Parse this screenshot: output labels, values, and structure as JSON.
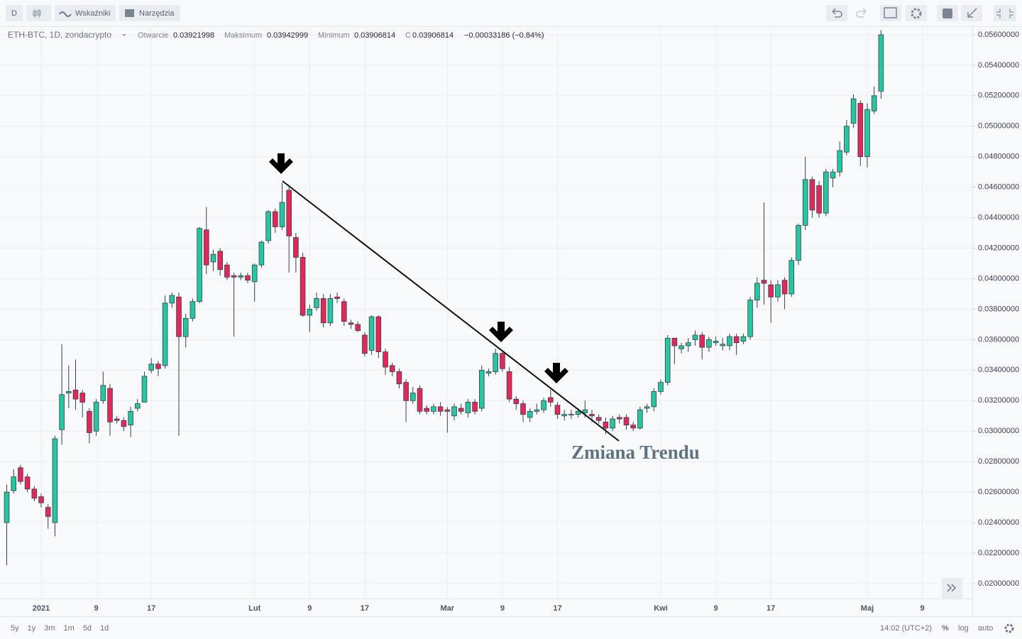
{
  "toolbar": {
    "interval": "D",
    "indicators": "Wskaźniki",
    "tools": "Narzędzia"
  },
  "legend": {
    "symbol": "ETH-BTC, 1D, zondacrypto",
    "items": [
      {
        "label": "Otwarcie",
        "value": "0.03921998"
      },
      {
        "label": "Maksimum",
        "value": "0.03942999"
      },
      {
        "label": "Minimum",
        "value": "0.03906814"
      },
      {
        "label": "C",
        "value": "0.03906814"
      }
    ],
    "change": "−0.00033186 (−0.84%)"
  },
  "bottom": {
    "ranges": [
      "5y",
      "1y",
      "3m",
      "1m",
      "5d",
      "1d"
    ],
    "time": "14:02 (UTC+2)",
    "percent": "%",
    "log": "log",
    "auto": "auto"
  },
  "chart_data": {
    "type": "candlestick",
    "annotation": "Zmiana Trendu",
    "up_color": "#26c6a2",
    "down_color": "#e0285a",
    "wick_color": "#3a3e4a",
    "grid": true,
    "xlim": [
      -5.98,
      135.26
    ],
    "ylim": [
      0.01902,
      0.05651
    ],
    "xticks": [
      {
        "value": 0,
        "label": "2021"
      },
      {
        "value": 8,
        "label": "9"
      },
      {
        "value": 16,
        "label": "17"
      },
      {
        "value": 31,
        "label": "Lut"
      },
      {
        "value": 39,
        "label": "9"
      },
      {
        "value": 47,
        "label": "17"
      },
      {
        "value": 59,
        "label": "Mar"
      },
      {
        "value": 67,
        "label": "9"
      },
      {
        "value": 75,
        "label": "17"
      },
      {
        "value": 90,
        "label": "Kwi"
      },
      {
        "value": 98,
        "label": "9"
      },
      {
        "value": 106,
        "label": "17"
      },
      {
        "value": 120,
        "label": "Maj"
      },
      {
        "value": 128,
        "label": "9"
      }
    ],
    "yticks": [
      {
        "value": 0.02,
        "label": "0.02000000"
      },
      {
        "value": 0.022,
        "label": "0.02200000"
      },
      {
        "value": 0.024,
        "label": "0.02400000"
      },
      {
        "value": 0.026,
        "label": "0.02600000"
      },
      {
        "value": 0.028,
        "label": "0.02800000"
      },
      {
        "value": 0.03,
        "label": "0.03000000"
      },
      {
        "value": 0.032,
        "label": "0.03200000"
      },
      {
        "value": 0.034,
        "label": "0.03400000"
      },
      {
        "value": 0.036,
        "label": "0.03600000"
      },
      {
        "value": 0.038,
        "label": "0.03800000"
      },
      {
        "value": 0.04,
        "label": "0.04000000"
      },
      {
        "value": 0.042,
        "label": "0.04200000"
      },
      {
        "value": 0.044,
        "label": "0.04400000"
      },
      {
        "value": 0.046,
        "label": "0.04600000"
      },
      {
        "value": 0.048,
        "label": "0.04800000"
      },
      {
        "value": 0.05,
        "label": "0.05000000"
      },
      {
        "value": 0.052,
        "label": "0.05200000"
      },
      {
        "value": 0.054,
        "label": "0.05400000"
      },
      {
        "value": 0.056,
        "label": "0.05600000"
      }
    ],
    "x": [
      -5,
      -4,
      -3,
      -2,
      -1,
      0,
      1,
      2,
      3,
      4,
      5,
      6,
      7,
      8,
      9,
      10,
      11,
      12,
      13,
      14,
      15,
      16,
      17,
      18,
      19,
      20,
      21,
      22,
      23,
      24,
      25,
      26,
      27,
      28,
      29,
      30,
      31,
      32,
      33,
      34,
      35,
      36,
      37,
      38,
      39,
      40,
      41,
      42,
      43,
      44,
      45,
      46,
      47,
      48,
      49,
      50,
      51,
      52,
      53,
      54,
      55,
      56,
      57,
      58,
      59,
      60,
      61,
      62,
      63,
      64,
      65,
      66,
      67,
      68,
      69,
      70,
      71,
      72,
      73,
      74,
      75,
      76,
      77,
      78,
      79,
      80,
      81,
      82,
      83,
      84,
      85,
      86,
      87,
      88,
      89,
      90,
      91,
      92,
      93,
      94,
      95,
      96,
      97,
      98,
      99,
      100,
      101,
      102,
      103,
      104,
      105,
      106,
      107,
      108,
      109,
      110,
      111,
      112,
      113,
      114,
      115,
      116,
      117,
      118,
      119,
      120,
      121,
      122
    ],
    "open": [
      0.024,
      0.0261,
      0.0276,
      0.027,
      0.0262,
      0.0257,
      0.025,
      0.024,
      0.0301,
      0.0325,
      0.0327,
      0.0325,
      0.0313,
      0.03,
      0.032,
      0.0328,
      0.0308,
      0.0307,
      0.0304,
      0.0315,
      0.0319,
      0.034,
      0.0344,
      0.0343,
      0.0384,
      0.0388,
      0.0362,
      0.0374,
      0.0385,
      0.0432,
      0.0411,
      0.0418,
      0.0409,
      0.0402,
      0.0401,
      0.0402,
      0.0398,
      0.0409,
      0.0425,
      0.0444,
      0.0434,
      0.0458,
      0.0427,
      0.0414,
      0.0376,
      0.0381,
      0.0387,
      0.0371,
      0.0388,
      0.0385,
      0.0371,
      0.037,
      0.0363,
      0.0353,
      0.0375,
      0.0352,
      0.0343,
      0.0339,
      0.0332,
      0.032,
      0.0328,
      0.0315,
      0.0313,
      0.0316,
      0.0314,
      0.031,
      0.0315,
      0.0312,
      0.0319,
      0.0315,
      0.0338,
      0.0339,
      0.0351,
      0.0339,
      0.0321,
      0.0318,
      0.0309,
      0.0313,
      0.0314,
      0.0322,
      0.0317,
      0.031,
      0.0311,
      0.0311,
      0.0312,
      0.0311,
      0.0309,
      0.0306,
      0.0302,
      0.0309,
      0.0309,
      0.0304,
      0.0302,
      0.0315,
      0.0316,
      0.0326,
      0.0332,
      0.0361,
      0.0354,
      0.0356,
      0.036,
      0.0363,
      0.0355,
      0.0358,
      0.0356,
      0.0356,
      0.0362,
      0.0359,
      0.0362,
      0.0386,
      0.0399,
      0.0396,
      0.0388,
      0.0399,
      0.039,
      0.0412,
      0.0435,
      0.0465,
      0.0461,
      0.0443,
      0.0466,
      0.047,
      0.0483,
      0.0502,
      0.0515,
      0.048,
      0.051,
      0.0523
    ],
    "high": [
      0.0265,
      0.0275,
      0.0278,
      0.0272,
      0.0264,
      0.0259,
      0.0252,
      0.0297,
      0.0357,
      0.0343,
      0.0347,
      0.0327,
      0.0315,
      0.0321,
      0.0339,
      0.0331,
      0.031,
      0.0309,
      0.0316,
      0.0321,
      0.0339,
      0.0348,
      0.0346,
      0.0389,
      0.0391,
      0.0391,
      0.0377,
      0.0387,
      0.0434,
      0.0447,
      0.0419,
      0.042,
      0.0411,
      0.0404,
      0.0404,
      0.0404,
      0.041,
      0.0425,
      0.0445,
      0.0446,
      0.0463,
      0.046,
      0.043,
      0.0417,
      0.0383,
      0.0391,
      0.039,
      0.039,
      0.0391,
      0.0387,
      0.0373,
      0.0372,
      0.0365,
      0.0376,
      0.0376,
      0.0354,
      0.0345,
      0.0341,
      0.0334,
      0.0329,
      0.033,
      0.0317,
      0.0318,
      0.0319,
      0.0316,
      0.0318,
      0.0318,
      0.0321,
      0.0321,
      0.0343,
      0.0341,
      0.0354,
      0.0353,
      0.0342,
      0.0323,
      0.032,
      0.0315,
      0.0318,
      0.0322,
      0.0327,
      0.0319,
      0.0314,
      0.0314,
      0.0315,
      0.032,
      0.0314,
      0.0311,
      0.0309,
      0.031,
      0.0311,
      0.0311,
      0.0306,
      0.0316,
      0.0318,
      0.0328,
      0.0334,
      0.0363,
      0.0361,
      0.0358,
      0.0361,
      0.0366,
      0.0365,
      0.0362,
      0.0362,
      0.0361,
      0.0364,
      0.0364,
      0.0364,
      0.0388,
      0.0401,
      0.045,
      0.0399,
      0.0399,
      0.0401,
      0.0414,
      0.0436,
      0.048,
      0.0467,
      0.0464,
      0.0472,
      0.0472,
      0.049,
      0.0504,
      0.0521,
      0.0517,
      0.0515,
      0.0526,
      0.0563
    ],
    "low": [
      0.0212,
      0.0259,
      0.0265,
      0.026,
      0.0254,
      0.025,
      0.0236,
      0.0231,
      0.0291,
      0.0315,
      0.0314,
      0.0309,
      0.0292,
      0.0297,
      0.0318,
      0.0297,
      0.0305,
      0.03,
      0.0296,
      0.0313,
      0.0319,
      0.0338,
      0.0336,
      0.0341,
      0.0381,
      0.0297,
      0.0355,
      0.0372,
      0.0384,
      0.0403,
      0.0405,
      0.0402,
      0.0399,
      0.0362,
      0.0399,
      0.0397,
      0.0385,
      0.0407,
      0.0423,
      0.043,
      0.0432,
      0.0404,
      0.0404,
      0.0375,
      0.0365,
      0.0379,
      0.0368,
      0.0369,
      0.0384,
      0.0369,
      0.0367,
      0.0365,
      0.0349,
      0.035,
      0.0348,
      0.0337,
      0.0336,
      0.0328,
      0.0306,
      0.0318,
      0.0311,
      0.0311,
      0.0311,
      0.031,
      0.0299,
      0.0307,
      0.0311,
      0.0309,
      0.0311,
      0.0313,
      0.0336,
      0.0337,
      0.0339,
      0.0319,
      0.0314,
      0.0306,
      0.0306,
      0.0311,
      0.0312,
      0.0316,
      0.0308,
      0.0307,
      0.0308,
      0.0309,
      0.0309,
      0.0306,
      0.0305,
      0.0298,
      0.03,
      0.0305,
      0.0301,
      0.03,
      0.0301,
      0.0312,
      0.0313,
      0.0324,
      0.033,
      0.0344,
      0.0351,
      0.0352,
      0.0356,
      0.0347,
      0.0352,
      0.0356,
      0.0353,
      0.0353,
      0.035,
      0.0357,
      0.036,
      0.0381,
      0.0383,
      0.0371,
      0.0385,
      0.038,
      0.0388,
      0.0409,
      0.0432,
      0.044,
      0.044,
      0.0441,
      0.046,
      0.0467,
      0.0481,
      0.0499,
      0.0474,
      0.0473,
      0.0508,
      0.0518
    ],
    "close": [
      0.026,
      0.027,
      0.0267,
      0.0262,
      0.0256,
      0.0253,
      0.0244,
      0.0295,
      0.0324,
      0.0326,
      0.0321,
      0.0319,
      0.0299,
      0.0319,
      0.033,
      0.0306,
      0.0307,
      0.0303,
      0.0313,
      0.0318,
      0.0336,
      0.0344,
      0.0341,
      0.0384,
      0.0389,
      0.0362,
      0.0374,
      0.0385,
      0.0433,
      0.0409,
      0.0416,
      0.0406,
      0.0401,
      0.0401,
      0.0402,
      0.0399,
      0.0409,
      0.0424,
      0.0444,
      0.0434,
      0.045,
      0.0428,
      0.0414,
      0.0376,
      0.038,
      0.0387,
      0.0371,
      0.0387,
      0.0387,
      0.0372,
      0.037,
      0.0366,
      0.0351,
      0.0375,
      0.0352,
      0.0342,
      0.0339,
      0.0331,
      0.032,
      0.0325,
      0.0313,
      0.0313,
      0.0316,
      0.0313,
      0.0313,
      0.0316,
      0.0313,
      0.0319,
      0.0313,
      0.034,
      0.0339,
      0.0351,
      0.0341,
      0.0321,
      0.0318,
      0.0311,
      0.0313,
      0.0314,
      0.032,
      0.0319,
      0.0311,
      0.0311,
      0.0311,
      0.0313,
      0.0314,
      0.031,
      0.0307,
      0.0302,
      0.0308,
      0.0308,
      0.0304,
      0.0302,
      0.0314,
      0.0316,
      0.0326,
      0.0332,
      0.0361,
      0.0356,
      0.0356,
      0.0358,
      0.0363,
      0.0355,
      0.036,
      0.0359,
      0.0357,
      0.0362,
      0.0358,
      0.0362,
      0.0386,
      0.0397,
      0.0397,
      0.0388,
      0.0396,
      0.039,
      0.0412,
      0.0435,
      0.0465,
      0.0445,
      0.0443,
      0.047,
      0.047,
      0.0484,
      0.05,
      0.0518,
      0.048,
      0.0511,
      0.052,
      0.056
    ]
  }
}
